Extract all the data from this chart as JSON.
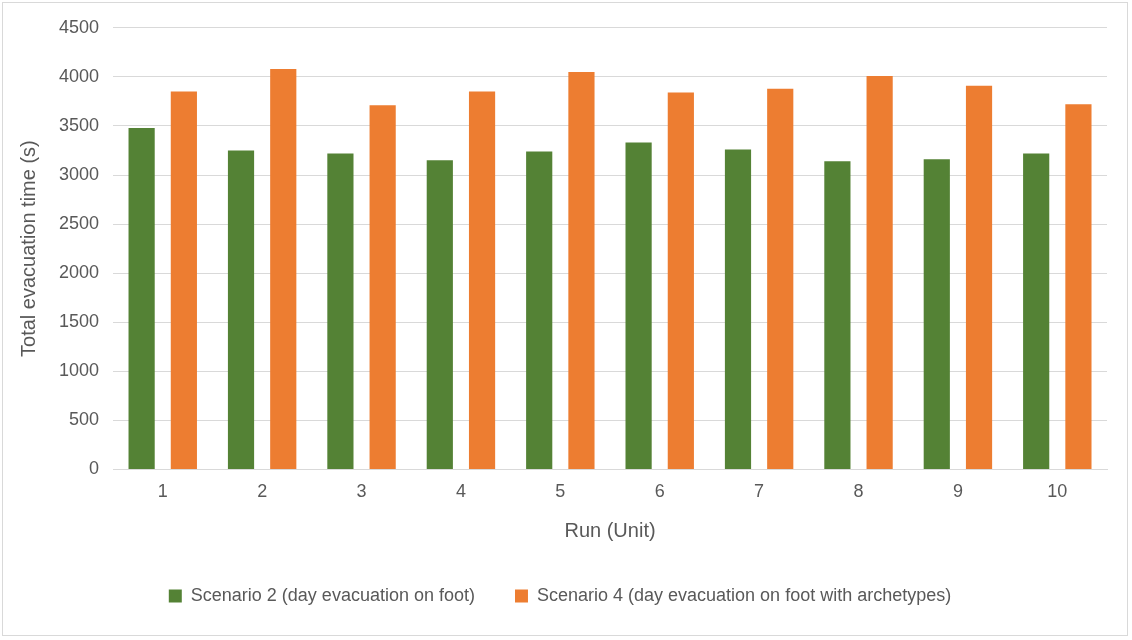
{
  "chart_data": {
    "type": "bar",
    "xlabel": "Run (Unit)",
    "ylabel": "Total evacuation time (s)",
    "categories": [
      "1",
      "2",
      "3",
      "4",
      "5",
      "6",
      "7",
      "8",
      "9",
      "10"
    ],
    "series": [
      {
        "name": "Scenario 2 (day evacuation on foot)",
        "color": "#548235",
        "values": [
          3480,
          3250,
          3220,
          3150,
          3240,
          3330,
          3260,
          3140,
          3160,
          3220
        ]
      },
      {
        "name": "Scenario 4 (day evacuation on foot with archetypes)",
        "color": "#ed7d31",
        "values": [
          3850,
          4080,
          3710,
          3850,
          4050,
          3840,
          3880,
          4010,
          3910,
          3720
        ]
      }
    ],
    "ylim": [
      0,
      4500
    ],
    "yticks": [
      0,
      500,
      1000,
      1500,
      2000,
      2500,
      3000,
      3500,
      4000,
      4500
    ],
    "grid": "y",
    "legend": "bottom"
  }
}
